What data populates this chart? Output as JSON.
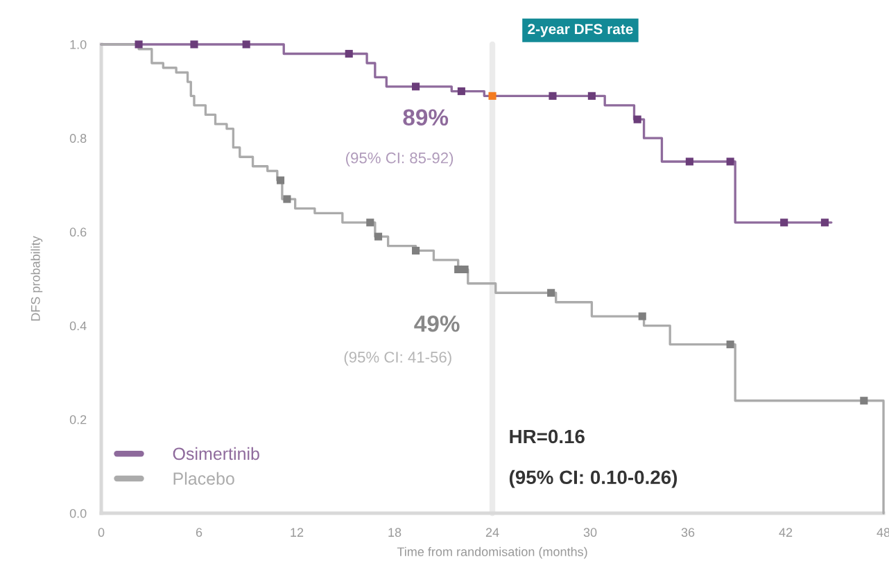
{
  "chart_data": {
    "type": "step",
    "xlabel": "Time from randomisation (months)",
    "ylabel": "DFS probability",
    "xlim": [
      0,
      48
    ],
    "xticks": [
      0,
      6,
      12,
      18,
      24,
      30,
      36,
      42,
      48
    ],
    "ylim": [
      0,
      1
    ],
    "yticks": [
      {
        "value": 0,
        "label": "0.0"
      },
      0.2,
      0.4,
      0.6,
      0.8,
      {
        "value": 1,
        "label": "1.0"
      }
    ],
    "legend": "bottom left",
    "line_style": "solid",
    "series": [
      {
        "name": "Osimertinib",
        "color": "#8e6a9c",
        "x": [
          0,
          11.2,
          16.3,
          16.8,
          17.5,
          21.5,
          23.5,
          30.9,
          32.7,
          33.3,
          34.4,
          38.9,
          44.8
        ],
        "values": [
          1.0,
          0.98,
          0.96,
          0.93,
          0.91,
          0.9,
          0.89,
          0.87,
          0.84,
          0.8,
          0.75,
          0.62,
          0.62
        ]
      },
      {
        "name": "Placebo",
        "color": "#ababab",
        "x": [
          0,
          2.3,
          3.1,
          3.8,
          4.6,
          5.3,
          5.5,
          5.7,
          6.4,
          7.0,
          7.7,
          8.1,
          8.5,
          9.3,
          10.2,
          10.8,
          11.1,
          11.9,
          13.1,
          14.8,
          16.8,
          17.6,
          19.3,
          20.4,
          21.9,
          22.5,
          24.2,
          27.9,
          30.1,
          33.3,
          34.9,
          38.9,
          48.0
        ],
        "values": [
          1.0,
          0.99,
          0.96,
          0.95,
          0.94,
          0.92,
          0.89,
          0.87,
          0.85,
          0.83,
          0.82,
          0.78,
          0.76,
          0.74,
          0.73,
          0.71,
          0.67,
          0.65,
          0.64,
          0.62,
          0.59,
          0.57,
          0.56,
          0.54,
          0.52,
          0.49,
          0.47,
          0.45,
          0.42,
          0.4,
          0.36,
          0.24,
          0.0
        ]
      },
      {
        "type": "scatter",
        "marker": "square",
        "color": "#6b3d7a",
        "x": [
          2.3,
          5.7,
          8.9,
          15.2,
          19.3,
          22.1,
          27.7,
          30.1,
          32.9,
          36.1,
          38.6,
          41.9,
          44.4
        ],
        "values": [
          1.0,
          1.0,
          1.0,
          0.98,
          0.91,
          0.9,
          0.89,
          0.89,
          0.84,
          0.75,
          0.75,
          0.62,
          0.62
        ]
      },
      {
        "type": "scatter",
        "marker": "square",
        "color": "#7f7f7f",
        "x": [
          11.0,
          11.4,
          16.5,
          17.0,
          19.3,
          21.9,
          22.3,
          27.6,
          33.2,
          38.6,
          46.8
        ],
        "values": [
          0.71,
          0.67,
          0.62,
          0.59,
          0.56,
          0.52,
          0.52,
          0.47,
          0.42,
          0.36,
          0.24
        ]
      },
      {
        "type": "scatter",
        "marker": "square",
        "color": "#f47b20",
        "x": [
          24
        ],
        "values": [
          0.89
        ]
      }
    ],
    "ref_lines": [
      {
        "axis": "x",
        "value": 24,
        "color": "#ebebeb"
      }
    ],
    "annotations": [
      "2-year DFS rate",
      "89%",
      "(95% CI: 85-92)",
      "49%",
      "(95% CI: 41-56)",
      "HR=0.16",
      "(95% CI: 0.10-0.26)"
    ]
  }
}
